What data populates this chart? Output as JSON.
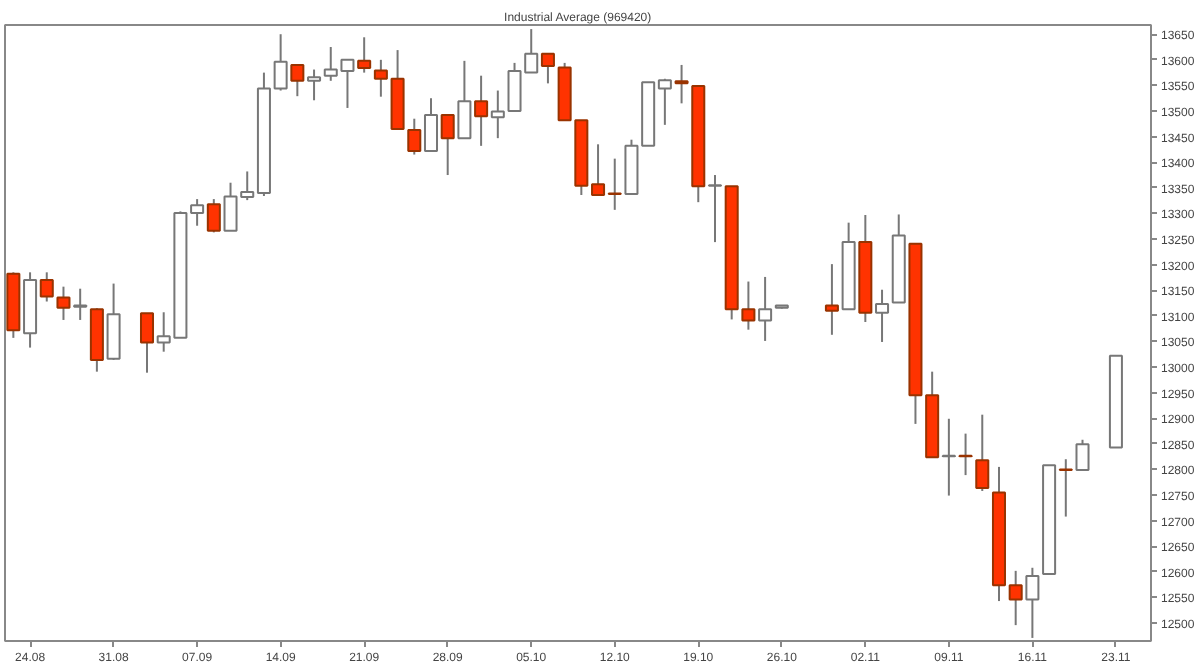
{
  "chart_data": {
    "type": "candlestick",
    "title": "Industrial Average (969420)",
    "categories": [
      null,
      "24.08",
      null,
      null,
      null,
      null,
      "31.08",
      null,
      null,
      null,
      null,
      "07.09",
      null,
      null,
      null,
      null,
      "14.09",
      null,
      null,
      null,
      null,
      "21.09",
      null,
      null,
      null,
      null,
      "28.09",
      null,
      null,
      null,
      null,
      "05.10",
      null,
      null,
      null,
      null,
      "12.10",
      null,
      null,
      null,
      null,
      "19.10",
      null,
      null,
      null,
      null,
      "26.10",
      null,
      null,
      null,
      null,
      "02.11",
      null,
      null,
      null,
      null,
      "09.11",
      null,
      null,
      null,
      null,
      "16.11",
      null,
      null,
      null,
      null,
      "23.11"
    ],
    "ohlc": [
      [
        13182,
        13185,
        13057,
        13072
      ],
      [
        13066,
        13185,
        13038,
        13170
      ],
      [
        13170,
        13185,
        13128,
        13138
      ],
      [
        13136,
        13157,
        13092,
        13116
      ],
      [
        13118,
        13153,
        13092,
        13120
      ],
      [
        13113,
        13115,
        12991,
        13014
      ],
      [
        13016,
        13163,
        13014,
        13103
      ],
      null,
      [
        13105,
        13105,
        12989,
        13048
      ],
      [
        13048,
        13107,
        13030,
        13060
      ],
      [
        13057,
        13304,
        13057,
        13301
      ],
      [
        13301,
        13328,
        13276,
        13316
      ],
      [
        13318,
        13328,
        13263,
        13266
      ],
      [
        13266,
        13360,
        13266,
        13333
      ],
      [
        13332,
        13382,
        13326,
        13342
      ],
      [
        13340,
        13575,
        13334,
        13544
      ],
      [
        13544,
        13650,
        13540,
        13596
      ],
      [
        13590,
        13590,
        13529,
        13559
      ],
      [
        13559,
        13581,
        13521,
        13566
      ],
      [
        13569,
        13625,
        13559,
        13581
      ],
      [
        13578,
        13600,
        13506,
        13600
      ],
      [
        13598,
        13644,
        13575,
        13584
      ],
      [
        13579,
        13600,
        13528,
        13563
      ],
      [
        13563,
        13619,
        13463,
        13465
      ],
      [
        13463,
        13485,
        13415,
        13422
      ],
      [
        13422,
        13525,
        13422,
        13492
      ],
      [
        13492,
        13492,
        13375,
        13447
      ],
      [
        13447,
        13598,
        13447,
        13519
      ],
      [
        13519,
        13569,
        13432,
        13490
      ],
      [
        13488,
        13540,
        13447,
        13499
      ],
      [
        13500,
        13594,
        13500,
        13578
      ],
      [
        13575,
        13660,
        13575,
        13612
      ],
      [
        13612,
        13612,
        13554,
        13588
      ],
      [
        13585,
        13594,
        13482,
        13482
      ],
      [
        13482,
        13482,
        13336,
        13354
      ],
      [
        13357,
        13435,
        13336,
        13336
      ],
      [
        13339,
        13407,
        13307,
        13338
      ],
      [
        13338,
        13444,
        13338,
        13432
      ],
      [
        13432,
        13556,
        13432,
        13556
      ],
      [
        13544,
        13563,
        13473,
        13560
      ],
      [
        13558,
        13590,
        13515,
        13554
      ],
      [
        13549,
        13549,
        13322,
        13353
      ],
      [
        13354,
        13375,
        13244,
        13355
      ],
      [
        13353,
        13353,
        13093,
        13113
      ],
      [
        13113,
        13167,
        13073,
        13091
      ],
      [
        13091,
        13176,
        13051,
        13113
      ],
      [
        13116,
        13121,
        13114,
        13120
      ],
      null,
      null,
      [
        13120,
        13201,
        13063,
        13110
      ],
      [
        13113,
        13282,
        13113,
        13244
      ],
      [
        13244,
        13297,
        13088,
        13106
      ],
      [
        13106,
        13151,
        13049,
        13123
      ],
      [
        13126,
        13298,
        13126,
        13257
      ],
      [
        13241,
        13241,
        12889,
        12945
      ],
      [
        12945,
        12991,
        12824,
        12824
      ],
      [
        12826,
        12899,
        12749,
        12827
      ],
      [
        12827,
        12870,
        12789,
        12826
      ],
      [
        12818,
        12907,
        12758,
        12764
      ],
      [
        12755,
        12805,
        12543,
        12574
      ],
      [
        12574,
        12602,
        12496,
        12546
      ],
      [
        12546,
        12608,
        12471,
        12592
      ],
      [
        12596,
        12808,
        12596,
        12808
      ],
      [
        12800,
        12820,
        12708,
        12799
      ],
      [
        12799,
        12858,
        12799,
        12849
      ],
      null,
      [
        12843,
        13022,
        12843,
        13022
      ]
    ],
    "colors": [
      "#ff3300",
      "#ffffff",
      "#ff3300",
      "#ff3300",
      "#ffffff",
      "#ff3300",
      "#ffffff",
      null,
      "#ff3300",
      "#ffffff",
      "#ffffff",
      "#ffffff",
      "#ff3300",
      "#ffffff",
      "#ffffff",
      "#ffffff",
      "#ffffff",
      "#ff3300",
      "#ffffff",
      "#ffffff",
      "#ffffff",
      "#ff3300",
      "#ff3300",
      "#ff3300",
      "#ff3300",
      "#ffffff",
      "#ff3300",
      "#ffffff",
      "#ff3300",
      "#ffffff",
      "#ffffff",
      "#ffffff",
      "#ff3300",
      "#ff3300",
      "#ff3300",
      "#ff3300",
      "#ff3300",
      "#ffffff",
      "#ffffff",
      "#ffffff",
      "#ff3300",
      "#ff3300",
      "#ffffff",
      "#ff3300",
      "#ff3300",
      "#ffffff",
      "#ffffff",
      null,
      null,
      "#ff3300",
      "#ffffff",
      "#ff3300",
      "#ffffff",
      "#ffffff",
      "#ff3300",
      "#ff3300",
      "#ffffff",
      "#ff3300",
      "#ff3300",
      "#ff3300",
      "#ff3300",
      "#ffffff",
      "#ffffff",
      "#ff3300",
      "#ffffff",
      null,
      "#ffffff"
    ],
    "ylim": [
      12465,
      13668
    ],
    "yticks": [
      12500,
      12550,
      12600,
      12650,
      12700,
      12750,
      12800,
      12850,
      12900,
      12950,
      13000,
      13050,
      13100,
      13150,
      13200,
      13250,
      13300,
      13350,
      13400,
      13450,
      13500,
      13550,
      13600,
      13650
    ],
    "grid": false
  }
}
